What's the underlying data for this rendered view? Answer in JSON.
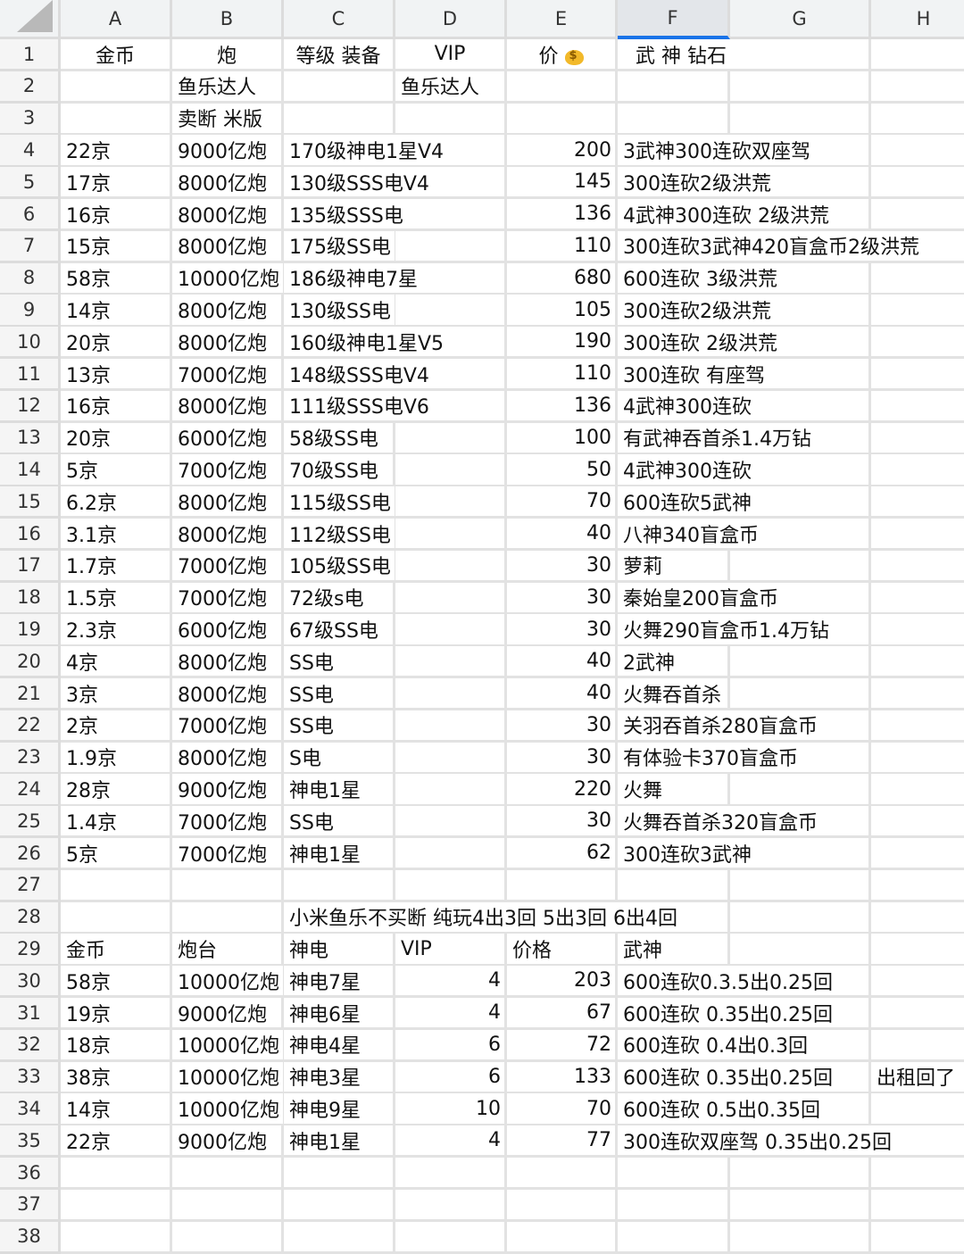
{
  "columns": [
    "A",
    "B",
    "C",
    "D",
    "E",
    "F",
    "G",
    "H"
  ],
  "selected_column": "F",
  "accent_color": "#1a73e8",
  "price_icon": "money-bag-icon",
  "rows": [
    {
      "n": "1",
      "cells": [
        "金币",
        "炮",
        "等级 装备",
        "VIP",
        "价",
        "武 神 钻石",
        "",
        ""
      ]
    },
    {
      "n": "2",
      "cells": [
        "",
        "鱼乐达人",
        "",
        "鱼乐达人",
        "",
        "",
        "",
        ""
      ]
    },
    {
      "n": "3",
      "cells": [
        "",
        "卖断 米版",
        "",
        "",
        "",
        "",
        "",
        ""
      ]
    },
    {
      "n": "4",
      "cells": [
        "22京",
        "9000亿炮",
        "170级神电1星V4",
        "",
        "200",
        "3武神300连砍双座驾",
        "",
        ""
      ]
    },
    {
      "n": "5",
      "cells": [
        "17京",
        "8000亿炮",
        "130级SSS电V4",
        "",
        "145",
        "300连砍2级洪荒",
        "",
        ""
      ]
    },
    {
      "n": "6",
      "cells": [
        "16京",
        "8000亿炮",
        "135级SSS电",
        "",
        "136",
        "4武神300连砍 2级洪荒",
        "",
        ""
      ]
    },
    {
      "n": "7",
      "cells": [
        "15京",
        "8000亿炮",
        "175级SS电",
        "",
        "110",
        "300连砍3武神420盲盒币2级洪荒",
        "",
        ""
      ]
    },
    {
      "n": "8",
      "cells": [
        "58京",
        "10000亿炮",
        "186级神电7星",
        "",
        "680",
        "600连砍 3级洪荒",
        "",
        ""
      ]
    },
    {
      "n": "9",
      "cells": [
        "14京",
        "8000亿炮",
        "130级SS电",
        "",
        "105",
        "300连砍2级洪荒",
        "",
        ""
      ]
    },
    {
      "n": "10",
      "cells": [
        "20京",
        "8000亿炮",
        "160级神电1星V5",
        "",
        "190",
        "300连砍 2级洪荒",
        "",
        ""
      ]
    },
    {
      "n": "11",
      "cells": [
        "13京",
        "7000亿炮",
        "148级SSS电V4",
        "",
        "110",
        "300连砍 有座驾",
        "",
        ""
      ]
    },
    {
      "n": "12",
      "cells": [
        "16京",
        "8000亿炮",
        "111级SSS电V6",
        "",
        "136",
        "4武神300连砍",
        "",
        ""
      ]
    },
    {
      "n": "13",
      "cells": [
        "20京",
        "6000亿炮",
        "58级SS电",
        "",
        "100",
        "有武神吞首杀1.4万钻",
        "",
        ""
      ]
    },
    {
      "n": "14",
      "cells": [
        "5京",
        "7000亿炮",
        "70级SS电",
        "",
        "50",
        "4武神300连砍",
        "",
        ""
      ]
    },
    {
      "n": "15",
      "cells": [
        "6.2京",
        "8000亿炮",
        "115级SS电",
        "",
        "70",
        "600连砍5武神",
        "",
        ""
      ]
    },
    {
      "n": "16",
      "cells": [
        "3.1京",
        "8000亿炮",
        "112级SS电",
        "",
        "40",
        "八神340盲盒币",
        "",
        ""
      ]
    },
    {
      "n": "17",
      "cells": [
        "1.7京",
        "7000亿炮",
        "105级SS电",
        "",
        "30",
        "萝莉",
        "",
        ""
      ]
    },
    {
      "n": "18",
      "cells": [
        "1.5京",
        "7000亿炮",
        "72级s电",
        "",
        "30",
        "秦始皇200盲盒币",
        "",
        ""
      ]
    },
    {
      "n": "19",
      "cells": [
        "2.3京",
        "6000亿炮",
        "67级SS电",
        "",
        "30",
        "火舞290盲盒币1.4万钻",
        "",
        ""
      ]
    },
    {
      "n": "20",
      "cells": [
        "4京",
        "8000亿炮",
        "SS电",
        "",
        "40",
        "2武神",
        "",
        ""
      ]
    },
    {
      "n": "21",
      "cells": [
        "3京",
        "8000亿炮",
        "SS电",
        "",
        "40",
        "火舞吞首杀",
        "",
        ""
      ]
    },
    {
      "n": "22",
      "cells": [
        "2京",
        "7000亿炮",
        "SS电",
        "",
        "30",
        "关羽吞首杀280盲盒币",
        "",
        ""
      ]
    },
    {
      "n": "23",
      "cells": [
        "1.9京",
        "8000亿炮",
        "S电",
        "",
        "30",
        "有体验卡370盲盒币",
        "",
        ""
      ]
    },
    {
      "n": "24",
      "cells": [
        "28京",
        "9000亿炮",
        "神电1星",
        "",
        "220",
        "火舞",
        "",
        ""
      ]
    },
    {
      "n": "25",
      "cells": [
        "1.4京",
        "7000亿炮",
        "SS电",
        "",
        "30",
        "火舞吞首杀320盲盒币",
        "",
        ""
      ]
    },
    {
      "n": "26",
      "cells": [
        "5京",
        "7000亿炮",
        "神电1星",
        "",
        "62",
        "300连砍3武神",
        "",
        ""
      ]
    },
    {
      "n": "27",
      "cells": [
        "",
        "",
        "",
        "",
        "",
        "",
        "",
        ""
      ]
    },
    {
      "n": "28",
      "cells": [
        "",
        "",
        "小米鱼乐不买断 纯玩4出3回 5出3回 6出4回",
        "",
        "",
        "",
        "",
        ""
      ]
    },
    {
      "n": "29",
      "cells": [
        "金币",
        "炮台",
        "神电",
        "VIP",
        "价格",
        "武神",
        "",
        ""
      ]
    },
    {
      "n": "30",
      "cells": [
        "58京",
        "10000亿炮",
        "神电7星",
        "4",
        "203",
        "600连砍0.3.5出0.25回",
        "",
        ""
      ]
    },
    {
      "n": "31",
      "cells": [
        "19京",
        "9000亿炮",
        "神电6星",
        "4",
        "67",
        "600连砍 0.35出0.25回",
        "",
        ""
      ]
    },
    {
      "n": "32",
      "cells": [
        "18京",
        "10000亿炮",
        "神电4星",
        "6",
        "72",
        "600连砍 0.4出0.3回",
        "",
        ""
      ]
    },
    {
      "n": "33",
      "cells": [
        "38京",
        "10000亿炮",
        "神电3星",
        "6",
        "133",
        "600连砍 0.35出0.25回",
        "",
        "出租回了"
      ]
    },
    {
      "n": "34",
      "cells": [
        "14京",
        "10000亿炮",
        "神电9星",
        "10",
        "70",
        "600连砍 0.5出0.35回",
        "",
        ""
      ]
    },
    {
      "n": "35",
      "cells": [
        "22京",
        "9000亿炮",
        "神电1星",
        "4",
        "77",
        "300连砍双座驾 0.35出0.25回",
        "",
        ""
      ]
    },
    {
      "n": "36",
      "cells": [
        "",
        "",
        "",
        "",
        "",
        "",
        "",
        ""
      ]
    },
    {
      "n": "37",
      "cells": [
        "",
        "",
        "",
        "",
        "",
        "",
        "",
        ""
      ]
    },
    {
      "n": "38",
      "cells": [
        "",
        "",
        "",
        "",
        "",
        "",
        "",
        ""
      ]
    }
  ]
}
